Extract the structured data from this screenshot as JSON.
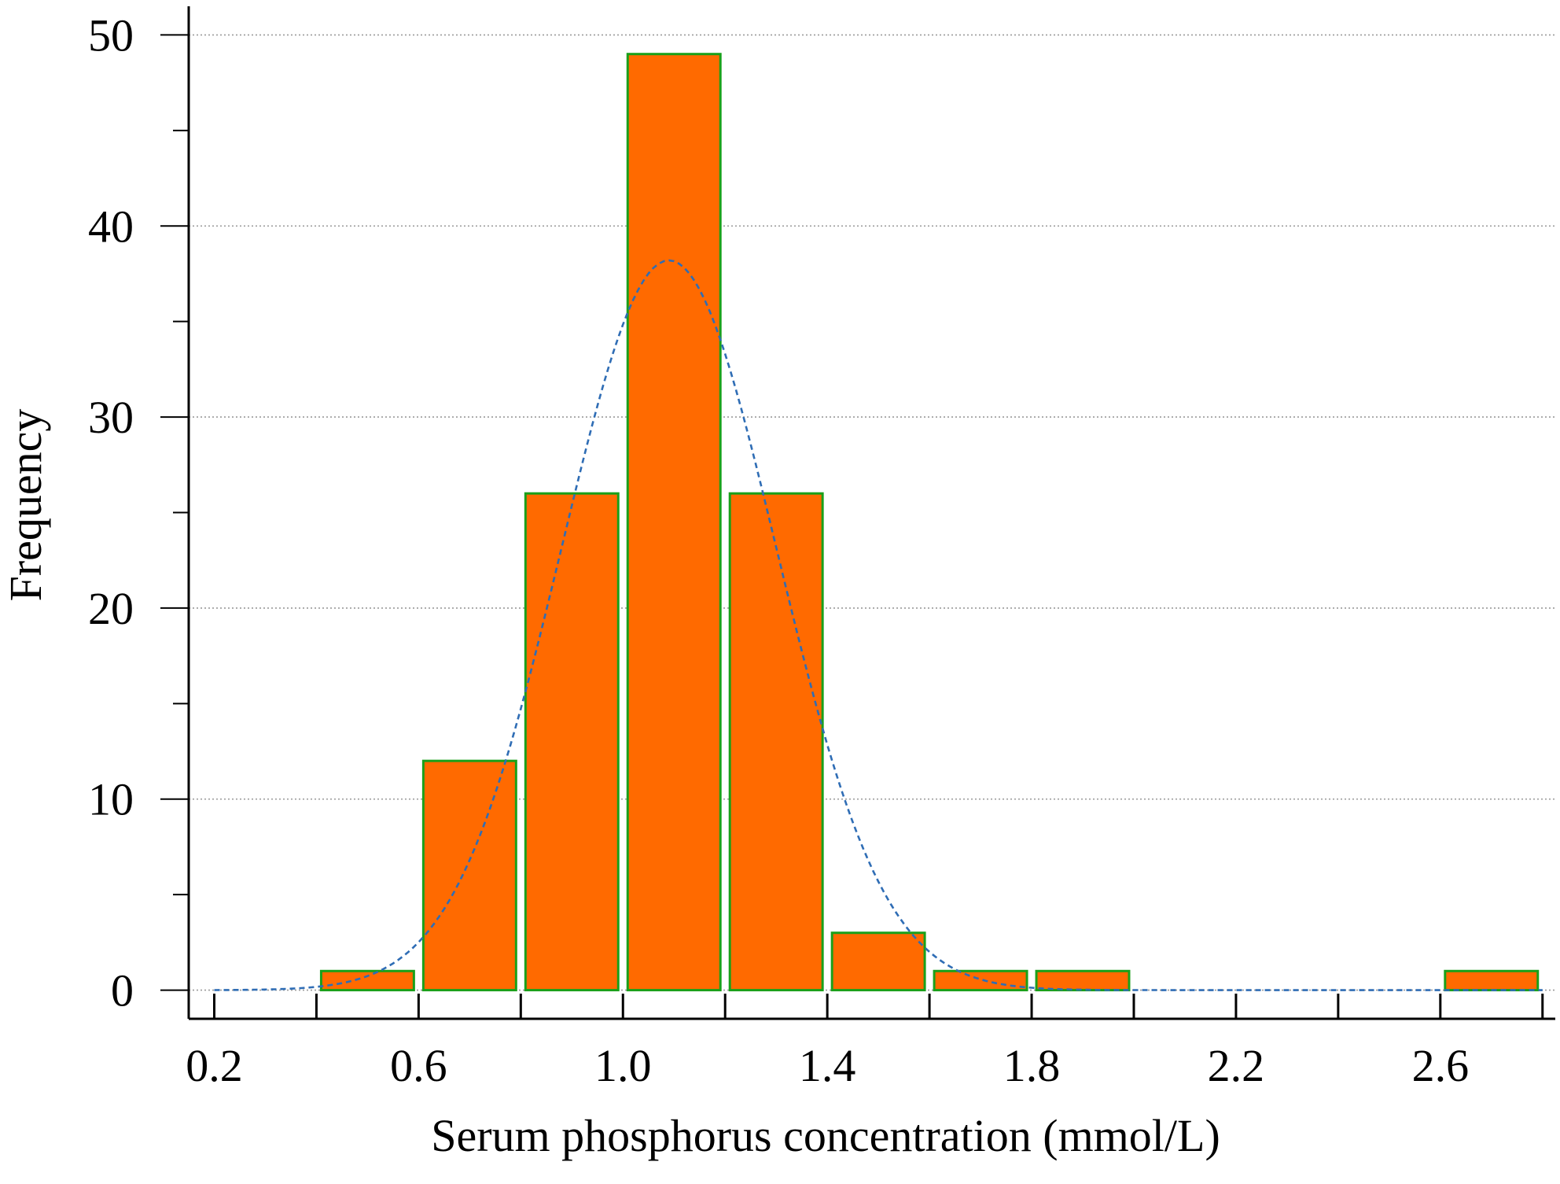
{
  "chart_data": {
    "type": "bar",
    "title": "",
    "xlabel": "Serum phosphorus concentration (mmol/L)",
    "ylabel": "Frequency",
    "xlim": [
      0.15,
      2.825
    ],
    "ylim": [
      -1.5,
      51.5
    ],
    "x_ticks": [
      0.2,
      0.4,
      0.6,
      0.8,
      1.0,
      1.2,
      1.4,
      1.6,
      1.8,
      2.0,
      2.2,
      2.4,
      2.6,
      2.8
    ],
    "x_tick_labels": [
      "0.2",
      "0.6",
      "1.0",
      "1.4",
      "1.8",
      "2.2",
      "2.6"
    ],
    "x_tick_label_values": [
      0.2,
      0.6,
      1.0,
      1.4,
      1.8,
      2.2,
      2.6
    ],
    "y_ticks": [
      0,
      5,
      10,
      15,
      20,
      25,
      30,
      35,
      40,
      45,
      50
    ],
    "y_tick_labels": [
      "0",
      "10",
      "20",
      "30",
      "40",
      "50"
    ],
    "y_tick_label_values": [
      0,
      10,
      20,
      30,
      40,
      50
    ],
    "grid": true,
    "bars": [
      {
        "x0": 0.4,
        "x1": 0.6,
        "value": 1
      },
      {
        "x0": 0.6,
        "x1": 0.8,
        "value": 12
      },
      {
        "x0": 0.8,
        "x1": 1.0,
        "value": 26
      },
      {
        "x0": 1.0,
        "x1": 1.2,
        "value": 49
      },
      {
        "x0": 1.2,
        "x1": 1.4,
        "value": 26
      },
      {
        "x0": 1.4,
        "x1": 1.6,
        "value": 3
      },
      {
        "x0": 1.6,
        "x1": 1.8,
        "value": 1
      },
      {
        "x0": 1.8,
        "x1": 2.0,
        "value": 1
      },
      {
        "x0": 2.6,
        "x1": 2.8,
        "value": 1
      }
    ],
    "normal_curve": {
      "mean": 1.09,
      "sd": 0.21,
      "peak": 38.2,
      "x_range": [
        0.2,
        2.8
      ]
    },
    "colors": {
      "bar_fill": "#ff6a00",
      "bar_stroke": "#1aa01a",
      "curve": "#2f6db5",
      "axis": "#000000",
      "grid": "#9a9a9a"
    }
  }
}
